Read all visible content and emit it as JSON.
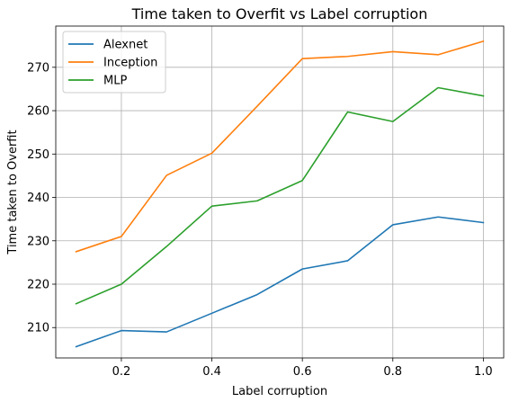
{
  "chart_data": {
    "type": "line",
    "title": "Time taken to Overfit vs Label corruption",
    "xlabel": "Label corruption",
    "ylabel": "Time taken to Overfit",
    "x": [
      0.1,
      0.2,
      0.3,
      0.4,
      0.5,
      0.6,
      0.7,
      0.8,
      0.9,
      1.0
    ],
    "xlim": [
      0.055,
      1.045
    ],
    "ylim": [
      203.0,
      279.5
    ],
    "xticks": [
      0.2,
      0.4,
      0.6,
      0.8,
      1.0
    ],
    "xtick_labels": [
      "0.2",
      "0.4",
      "0.6",
      "0.8",
      "1.0"
    ],
    "yticks": [
      210,
      220,
      230,
      240,
      250,
      260,
      270
    ],
    "ytick_labels": [
      "210",
      "220",
      "230",
      "240",
      "250",
      "260",
      "270"
    ],
    "grid": true,
    "legend_position": "top-left",
    "series": [
      {
        "name": "Alexnet",
        "color": "#1f77b4",
        "values": [
          205.6,
          209.3,
          209.0,
          213.3,
          217.6,
          223.5,
          225.4,
          233.7,
          235.5,
          234.2
        ]
      },
      {
        "name": "Inception",
        "color": "#ff7f0e",
        "values": [
          227.5,
          231.0,
          245.1,
          250.2,
          261.0,
          272.0,
          272.5,
          273.6,
          272.9,
          276.0
        ]
      },
      {
        "name": "MLP",
        "color": "#2ca02c",
        "values": [
          215.5,
          220.0,
          228.7,
          238.0,
          239.2,
          243.9,
          259.7,
          257.5,
          265.3,
          263.4
        ]
      }
    ]
  }
}
